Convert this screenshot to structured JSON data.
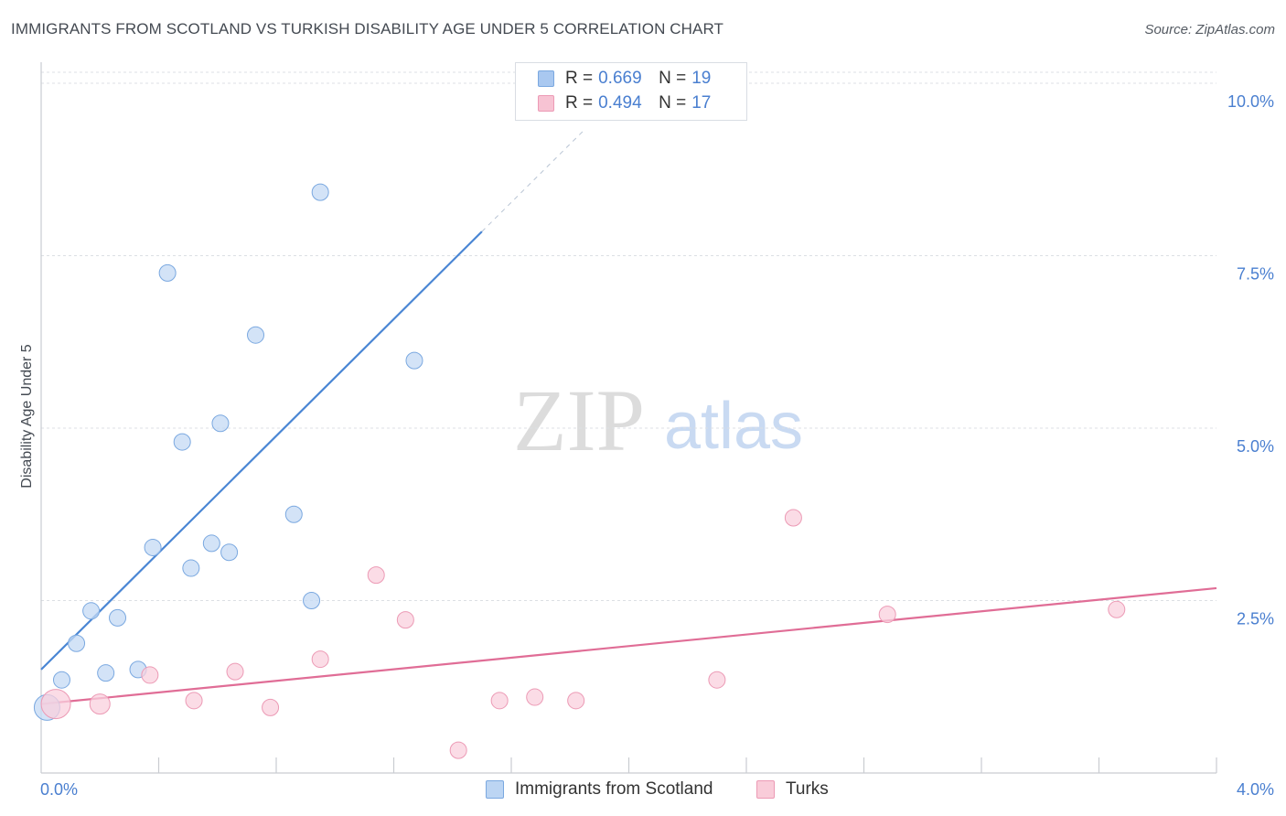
{
  "title": "IMMIGRANTS FROM SCOTLAND VS TURKISH DISABILITY AGE UNDER 5 CORRELATION CHART",
  "source": "Source: ZipAtlas.com",
  "watermark": {
    "zip": "ZIP",
    "atlas": "atlas"
  },
  "legend_top": {
    "rows": [
      {
        "r_label": "R =",
        "r_value": "0.669",
        "n_label": "N =",
        "n_value": "19",
        "color": "#a9c8f0",
        "border": "#7aa8e0"
      },
      {
        "r_label": "R =",
        "r_value": "0.494",
        "n_label": "N =",
        "n_value": "17",
        "color": "#f7c3d3",
        "border": "#ec9ab5"
      }
    ]
  },
  "legend_bottom": [
    {
      "label": "Immigrants from Scotland",
      "color": "#bcd5f3",
      "border": "#7aa8e0"
    },
    {
      "label": "Turks",
      "color": "#f9ccd9",
      "border": "#ec9ab5"
    }
  ],
  "chart_data": {
    "type": "scatter",
    "title": "IMMIGRANTS FROM SCOTLAND VS TURKISH DISABILITY AGE UNDER 5 CORRELATION CHART",
    "xlabel": "",
    "ylabel": "Disability Age Under 5",
    "xlim": [
      0,
      4.0
    ],
    "ylim": [
      0,
      10.0
    ],
    "x_tick_labels": {
      "min": "0.0%",
      "max": "4.0%"
    },
    "y_ticks": [
      {
        "value": 2.5,
        "label": "2.5%"
      },
      {
        "value": 5.0,
        "label": "5.0%"
      },
      {
        "value": 7.5,
        "label": "7.5%"
      },
      {
        "value": 10.0,
        "label": "10.0%"
      }
    ],
    "grid": true,
    "series": [
      {
        "name": "Immigrants from Scotland",
        "color": "#4a86d4",
        "fill": "#c4daf4",
        "stroke": "#7aa8e0",
        "points": [
          {
            "x": 0.02,
            "y": 0.95,
            "size": 14
          },
          {
            "x": 0.07,
            "y": 1.35,
            "size": 9
          },
          {
            "x": 0.12,
            "y": 1.88,
            "size": 9
          },
          {
            "x": 0.17,
            "y": 2.35,
            "size": 9
          },
          {
            "x": 0.22,
            "y": 1.45,
            "size": 9
          },
          {
            "x": 0.26,
            "y": 2.25,
            "size": 9
          },
          {
            "x": 0.33,
            "y": 1.5,
            "size": 9
          },
          {
            "x": 0.38,
            "y": 3.27,
            "size": 9
          },
          {
            "x": 0.43,
            "y": 7.25,
            "size": 9
          },
          {
            "x": 0.48,
            "y": 4.8,
            "size": 9
          },
          {
            "x": 0.51,
            "y": 2.97,
            "size": 9
          },
          {
            "x": 0.58,
            "y": 3.33,
            "size": 9
          },
          {
            "x": 0.61,
            "y": 5.07,
            "size": 9
          },
          {
            "x": 0.64,
            "y": 3.2,
            "size": 9
          },
          {
            "x": 0.73,
            "y": 6.35,
            "size": 9
          },
          {
            "x": 0.86,
            "y": 3.75,
            "size": 9
          },
          {
            "x": 0.92,
            "y": 2.5,
            "size": 9
          },
          {
            "x": 0.95,
            "y": 8.42,
            "size": 9
          },
          {
            "x": 1.27,
            "y": 5.98,
            "size": 9
          }
        ],
        "trend": {
          "x0": 0.0,
          "y0": 1.5,
          "x1": 1.5,
          "y1": 7.85,
          "dash_to_x": 1.85,
          "dash_to_y": 9.33
        }
      },
      {
        "name": "Turks",
        "color": "#e06d96",
        "fill": "#fad0dd",
        "stroke": "#ec9ab5",
        "points": [
          {
            "x": 0.05,
            "y": 1.0,
            "size": 16
          },
          {
            "x": 0.2,
            "y": 1.0,
            "size": 11
          },
          {
            "x": 0.37,
            "y": 1.42,
            "size": 9
          },
          {
            "x": 0.52,
            "y": 1.05,
            "size": 9
          },
          {
            "x": 0.66,
            "y": 1.47,
            "size": 9
          },
          {
            "x": 0.78,
            "y": 0.95,
            "size": 9
          },
          {
            "x": 0.95,
            "y": 1.65,
            "size": 9
          },
          {
            "x": 1.14,
            "y": 2.87,
            "size": 9
          },
          {
            "x": 1.24,
            "y": 2.22,
            "size": 9
          },
          {
            "x": 1.42,
            "y": 0.33,
            "size": 9
          },
          {
            "x": 1.56,
            "y": 1.05,
            "size": 9
          },
          {
            "x": 1.68,
            "y": 1.1,
            "size": 9
          },
          {
            "x": 1.82,
            "y": 1.05,
            "size": 9
          },
          {
            "x": 2.3,
            "y": 1.35,
            "size": 9
          },
          {
            "x": 2.56,
            "y": 3.7,
            "size": 9
          },
          {
            "x": 2.88,
            "y": 2.3,
            "size": 9
          },
          {
            "x": 3.66,
            "y": 2.37,
            "size": 9
          }
        ],
        "trend": {
          "x0": 0.0,
          "y0": 1.0,
          "x1": 4.0,
          "y1": 2.68
        }
      }
    ]
  }
}
